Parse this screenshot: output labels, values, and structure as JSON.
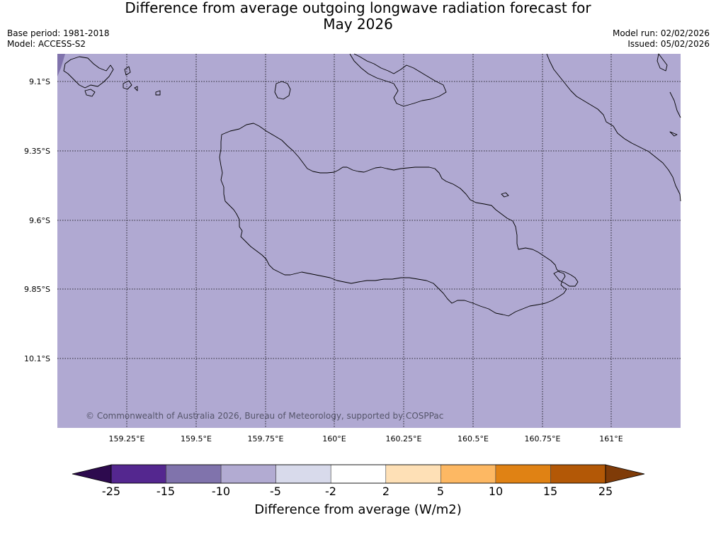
{
  "title": "Difference from average outgoing longwave radiation forecast for May 2026",
  "title_line1": "Difference from average outgoing longwave radiation forecast for",
  "title_line2": "May 2026",
  "meta": {
    "base_period": "Base period: 1981-2018",
    "model": "Model: ACCESS-S2",
    "model_run": "Model run: 02/02/2026",
    "issued": "Issued: 05/02/2026"
  },
  "map": {
    "fill_color": "#b0a9d2",
    "coastline_color": "#000000",
    "lat_labels": [
      "9.1°S",
      "9.35°S",
      "9.6°S",
      "9.85°S",
      "10.1°S"
    ],
    "lon_labels": [
      "159.25°E",
      "159.5°E",
      "159.75°E",
      "160°E",
      "160.25°E",
      "160.5°E",
      "160.75°E",
      "161°E"
    ],
    "credit": "© Commonwealth of Australia 2026, Bureau of Meteorology, supported by COSPPac"
  },
  "colorbar": {
    "title": "Difference from average (W/m2)",
    "tick_labels": [
      "-25",
      "-15",
      "-10",
      "-5",
      "-2",
      "2",
      "5",
      "10",
      "15",
      "25"
    ],
    "colors": [
      "#2d0a4e",
      "#54278f",
      "#8073ac",
      "#b2abd2",
      "#d8daeb",
      "#ffffff",
      "#fee0b6",
      "#fdb863",
      "#e08214",
      "#b35806",
      "#7f3b08"
    ]
  }
}
